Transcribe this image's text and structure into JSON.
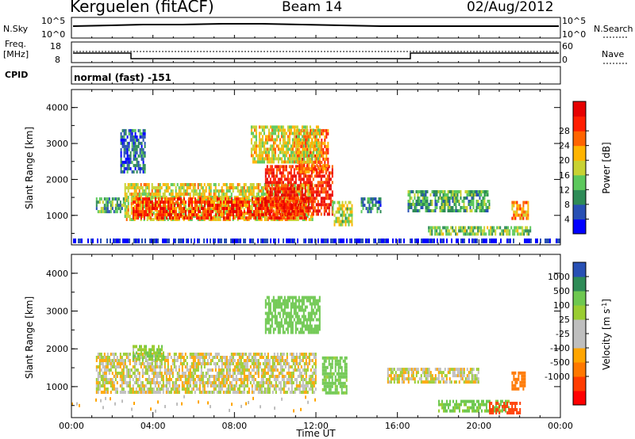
{
  "header": {
    "station": "Kerguelen (fitACF)",
    "beam": "Beam 14",
    "date": "02/Aug/2012"
  },
  "top_panels": {
    "nsky_label": "N.Sky",
    "nsky_ticks": [
      "10^5",
      "10^0"
    ],
    "nsearch_label": "N.Search",
    "nsearch_ticks": [
      "10^5",
      "10^0"
    ],
    "freq_label_1": "Freq.",
    "freq_label_2": "[MHz]",
    "freq_ticks": [
      "18",
      "8"
    ],
    "nave_label": "Nave",
    "nave_ticks": [
      "60",
      "0"
    ],
    "cpid_label": "CPID",
    "cpid_text": "normal (fast) -151"
  },
  "colors": {
    "power_scale": [
      "#0000ff",
      "#2850b4",
      "#2e8b57",
      "#5cc85c",
      "#c8d232",
      "#ffb400",
      "#ff6400",
      "#ff1e00",
      "#e60000"
    ],
    "velocity_scale": [
      "#2850b4",
      "#2e8b57",
      "#6ec850",
      "#9acd32",
      "#bebebe",
      "#bebebe",
      "#ffa500",
      "#ff7800",
      "#ff3c00",
      "#ff0000"
    ]
  },
  "chart_data": [
    {
      "type": "heatmap",
      "name": "power",
      "ylabel": "Slant Range [km]",
      "ylim": [
        180,
        4500
      ],
      "yticks": [
        "1000",
        "2000",
        "3000",
        "4000"
      ],
      "colorbar_label": "Power [dB]",
      "colorbar_ticks": [
        "4",
        "8",
        "12",
        "16",
        "20",
        "24",
        "28"
      ],
      "colorbar_range": [
        0,
        30
      ],
      "regions": [
        {
          "t0": 2.6,
          "t1": 11.8,
          "r0": 850,
          "r1": 1900,
          "value": 16
        },
        {
          "t0": 3.0,
          "t1": 11.5,
          "r0": 950,
          "r1": 1500,
          "value": 24
        },
        {
          "t0": 9.5,
          "t1": 12.8,
          "r0": 1000,
          "r1": 2400,
          "value": 26
        },
        {
          "t0": 11.0,
          "t1": 12.6,
          "r0": 2200,
          "r1": 3400,
          "value": 22
        },
        {
          "t0": 8.8,
          "t1": 12.2,
          "r0": 2500,
          "r1": 3500,
          "value": 16
        },
        {
          "t0": 12.8,
          "t1": 13.8,
          "r0": 700,
          "r1": 1400,
          "value": 14
        },
        {
          "t0": 2.4,
          "t1": 3.6,
          "r0": 2200,
          "r1": 3400,
          "value": 6
        },
        {
          "t0": 1.2,
          "t1": 2.6,
          "r0": 1100,
          "r1": 1500,
          "value": 10
        },
        {
          "t0": 14.2,
          "t1": 15.2,
          "r0": 1100,
          "r1": 1500,
          "value": 8
        },
        {
          "t0": 16.5,
          "t1": 20.5,
          "r0": 1100,
          "r1": 1700,
          "value": 10
        },
        {
          "t0": 17.5,
          "t1": 22.5,
          "r0": 450,
          "r1": 700,
          "value": 12
        },
        {
          "t0": 21.6,
          "t1": 22.4,
          "r0": 900,
          "r1": 1400,
          "value": 20
        }
      ]
    },
    {
      "type": "heatmap",
      "name": "velocity",
      "ylabel": "Slant Range [km]",
      "xlabel": "Time UT",
      "ylim": [
        180,
        4500
      ],
      "yticks": [
        "1000",
        "2000",
        "3000",
        "4000"
      ],
      "xticks": [
        "00:00",
        "04:00",
        "08:00",
        "12:00",
        "16:00",
        "20:00",
        "00:00"
      ],
      "colorbar_label": "Velocity [m s",
      "colorbar_label_exp": "-1",
      "colorbar_ticks": [
        "1000",
        "500",
        "100",
        "25",
        "-25",
        "-100",
        "-500",
        "-1000"
      ],
      "regions": [
        {
          "t0": 1.2,
          "t1": 12.0,
          "r0": 850,
          "r1": 1900,
          "value": 0
        },
        {
          "t0": 12.3,
          "t1": 13.5,
          "r0": 800,
          "r1": 1800,
          "value": 150
        },
        {
          "t0": 9.5,
          "t1": 12.2,
          "r0": 2400,
          "r1": 3400,
          "value": 200
        },
        {
          "t0": 15.5,
          "t1": 20.0,
          "r0": 1100,
          "r1": 1500,
          "value": 0
        },
        {
          "t0": 18.0,
          "t1": 21.5,
          "r0": 380,
          "r1": 650,
          "value": 120
        },
        {
          "t0": 20.5,
          "t1": 22.0,
          "r0": 300,
          "r1": 600,
          "value": -600
        },
        {
          "t0": 21.6,
          "t1": 22.3,
          "r0": 900,
          "r1": 1400,
          "value": -300
        },
        {
          "t0": 3.0,
          "t1": 4.5,
          "r0": 1700,
          "r1": 2100,
          "value": 80
        }
      ]
    }
  ]
}
